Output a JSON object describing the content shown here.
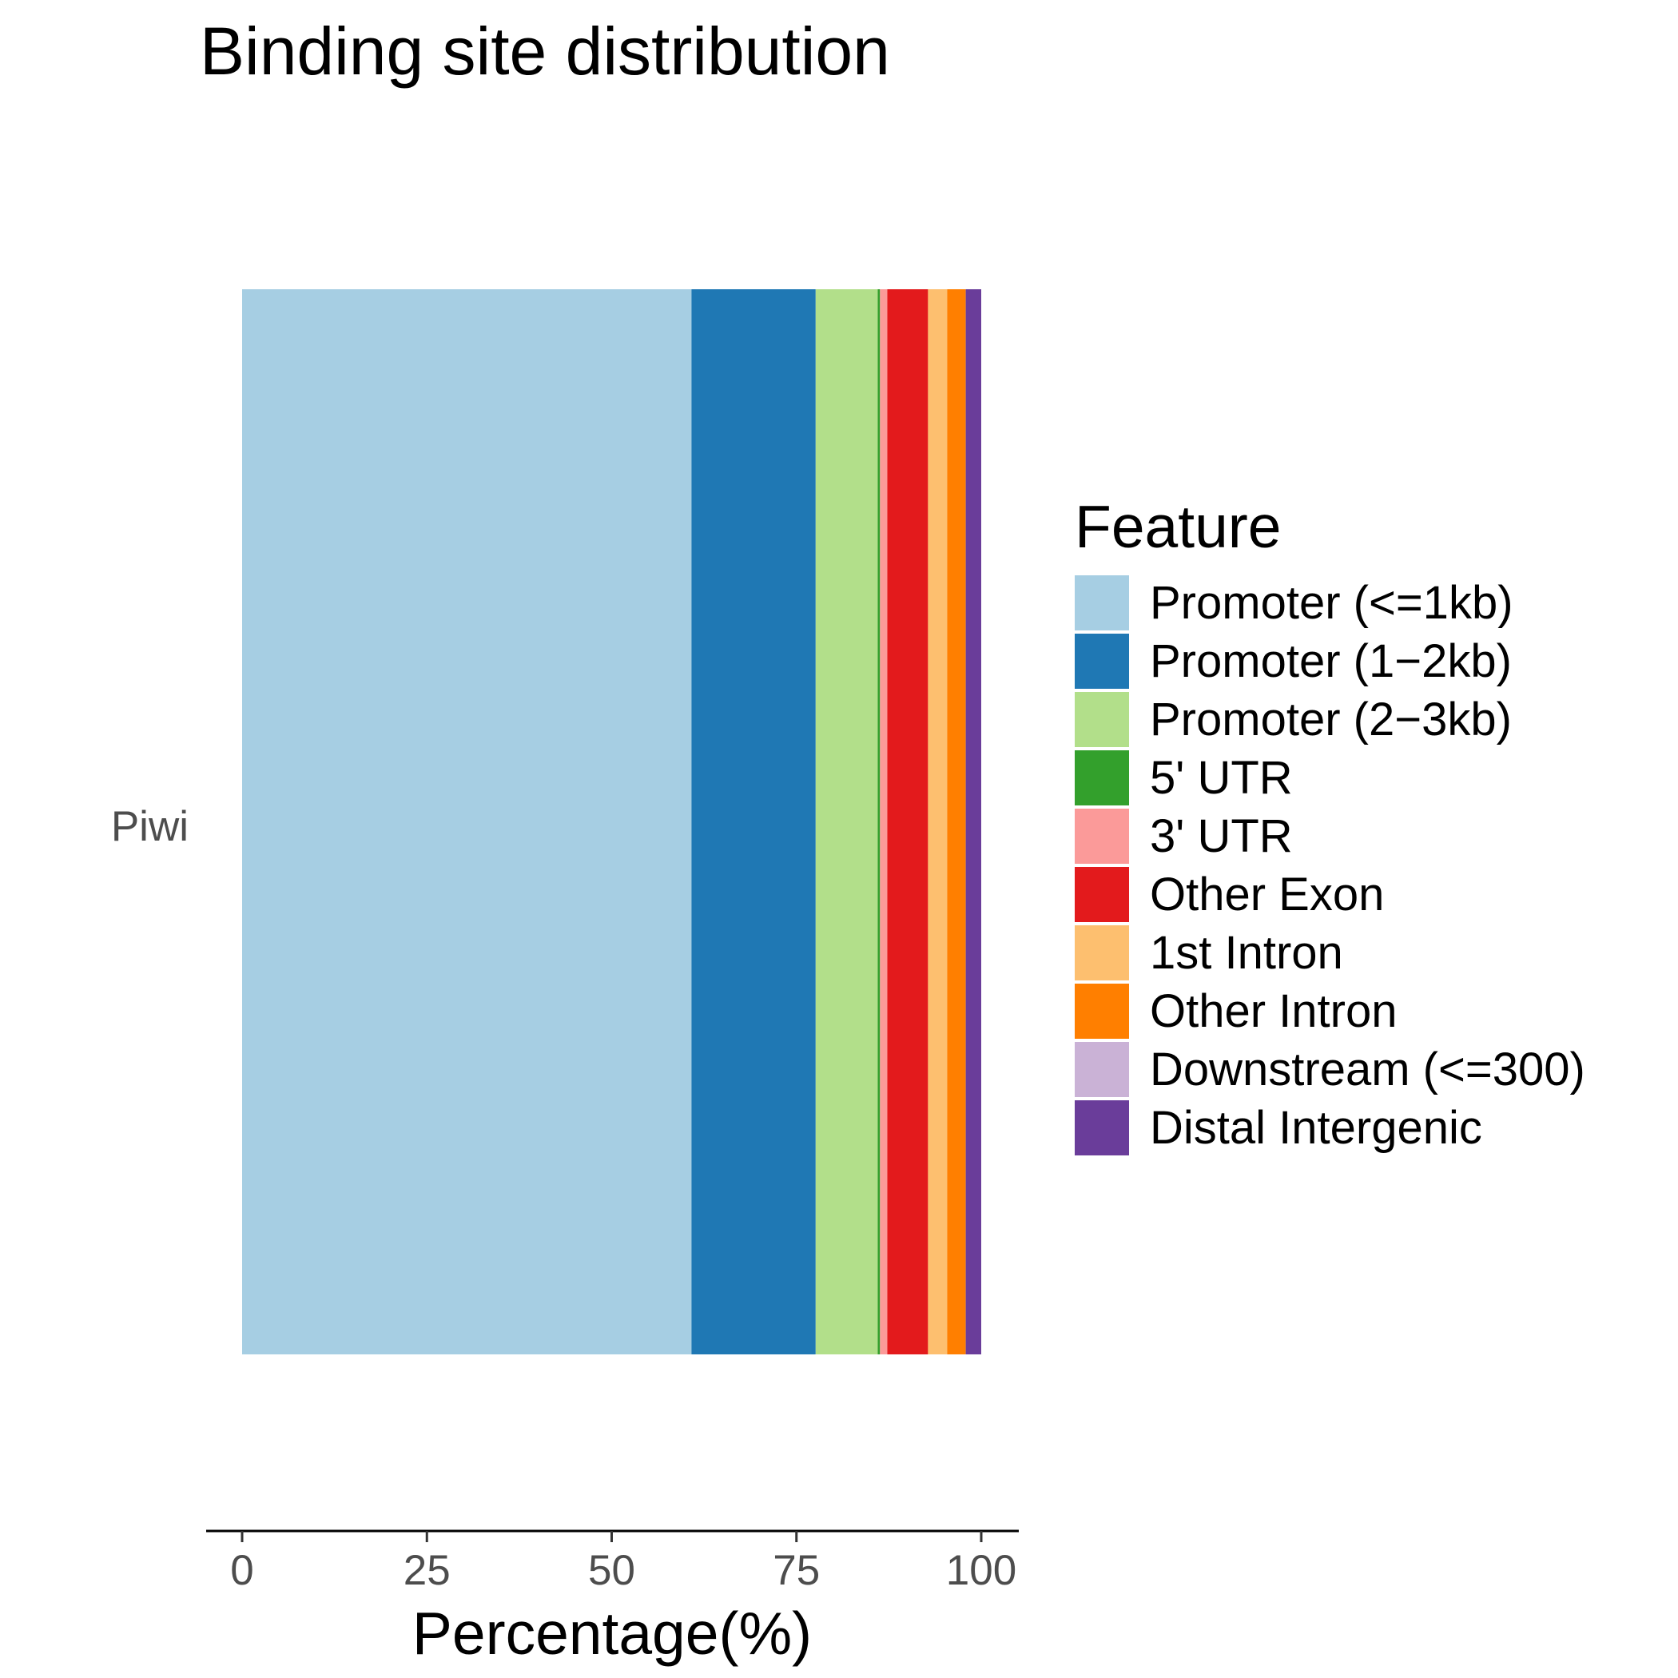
{
  "chart_data": {
    "type": "bar",
    "orientation": "horizontal",
    "stacked": true,
    "title": "Binding site distribution",
    "xlabel": "Percentage(%)",
    "ylabel": "",
    "xlim": [
      0,
      100
    ],
    "x_ticks": [
      0,
      25,
      50,
      75,
      100
    ],
    "categories": [
      "Piwi"
    ],
    "grid": false,
    "legend": {
      "title": "Feature",
      "position": "right"
    },
    "series": [
      {
        "name": "Promoter (<=1kb)",
        "color": "#a6cee3",
        "values": [
          60.8
        ]
      },
      {
        "name": "Promoter (1−2kb)",
        "color": "#1f78b4",
        "values": [
          16.8
        ]
      },
      {
        "name": "Promoter (2−3kb)",
        "color": "#b2df8a",
        "values": [
          8.4
        ]
      },
      {
        "name": "5' UTR",
        "color": "#33a02c",
        "values": [
          0.3
        ]
      },
      {
        "name": "3' UTR",
        "color": "#fb9a99",
        "values": [
          1.0
        ]
      },
      {
        "name": "Other Exon",
        "color": "#e31a1c",
        "values": [
          5.5
        ]
      },
      {
        "name": "1st Intron",
        "color": "#fdbf6f",
        "values": [
          2.6
        ]
      },
      {
        "name": "Other Intron",
        "color": "#ff7f00",
        "values": [
          2.5
        ]
      },
      {
        "name": "Downstream (<=300)",
        "color": "#cab2d6",
        "values": [
          0.0
        ]
      },
      {
        "name": "Distal Intergenic",
        "color": "#6a3d9a",
        "values": [
          2.1
        ]
      }
    ]
  }
}
